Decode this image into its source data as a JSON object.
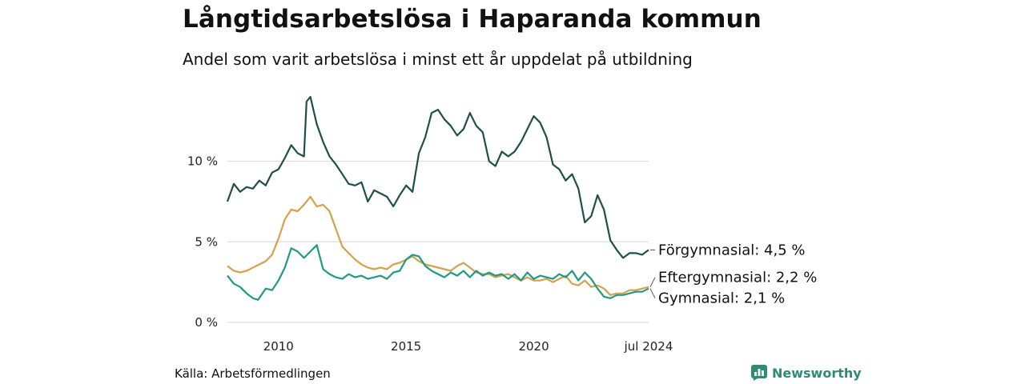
{
  "header": {
    "title": "Långtidsarbetslösa i Haparanda kommun",
    "subtitle": "Andel som varit arbetslösa i minst ett år uppdelat på utbildning"
  },
  "footer": {
    "source": "Källa: Arbetsförmedlingen",
    "brand": "Newsworthy"
  },
  "colors": {
    "forgymnasial": "#1f4f46",
    "eftergymnasial": "#d4a24c",
    "gymnasial": "#1f9a84",
    "grid": "#dddddd",
    "brand": "#2e8b74"
  },
  "chart_data": {
    "type": "line",
    "title": "Långtidsarbetslösa i Haparanda kommun",
    "subtitle": "Andel som varit arbetslösa i minst ett år uppdelat på utbildning",
    "xlabel": "",
    "ylabel": "",
    "xlim": [
      2008.0,
      2024.5
    ],
    "ylim": [
      0,
      14
    ],
    "y_ticks": [
      0,
      5,
      10
    ],
    "y_tick_labels": [
      "0 %",
      "5 %",
      "10 %"
    ],
    "x_ticks": [
      2010,
      2015,
      2020,
      2024.5
    ],
    "x_tick_labels": [
      "2010",
      "2015",
      "2020",
      "jul 2024"
    ],
    "grid": "horizontal",
    "legend": "direct labels at line ends",
    "series": [
      {
        "name": "Förgymnasial",
        "end_label": "Förgymnasial: 4,5 %",
        "color": "#1f4f46",
        "points": [
          [
            2008.0,
            7.5
          ],
          [
            2008.25,
            8.6
          ],
          [
            2008.5,
            8.1
          ],
          [
            2008.75,
            8.4
          ],
          [
            2009.0,
            8.3
          ],
          [
            2009.25,
            8.8
          ],
          [
            2009.5,
            8.5
          ],
          [
            2009.75,
            9.3
          ],
          [
            2010.0,
            9.5
          ],
          [
            2010.25,
            10.2
          ],
          [
            2010.5,
            11.0
          ],
          [
            2010.75,
            10.5
          ],
          [
            2011.0,
            10.3
          ],
          [
            2011.1,
            13.7
          ],
          [
            2011.25,
            14.0
          ],
          [
            2011.5,
            12.3
          ],
          [
            2011.75,
            11.2
          ],
          [
            2012.0,
            10.3
          ],
          [
            2012.25,
            9.8
          ],
          [
            2012.5,
            9.2
          ],
          [
            2012.75,
            8.6
          ],
          [
            2013.0,
            8.5
          ],
          [
            2013.25,
            8.7
          ],
          [
            2013.5,
            7.5
          ],
          [
            2013.75,
            8.2
          ],
          [
            2014.0,
            8.0
          ],
          [
            2014.25,
            7.8
          ],
          [
            2014.5,
            7.2
          ],
          [
            2014.75,
            7.9
          ],
          [
            2015.0,
            8.5
          ],
          [
            2015.25,
            8.1
          ],
          [
            2015.5,
            10.5
          ],
          [
            2015.75,
            11.5
          ],
          [
            2016.0,
            13.0
          ],
          [
            2016.25,
            13.2
          ],
          [
            2016.5,
            12.6
          ],
          [
            2016.75,
            12.2
          ],
          [
            2017.0,
            11.6
          ],
          [
            2017.25,
            12.0
          ],
          [
            2017.5,
            13.0
          ],
          [
            2017.75,
            12.2
          ],
          [
            2018.0,
            11.8
          ],
          [
            2018.25,
            10.0
          ],
          [
            2018.5,
            9.7
          ],
          [
            2018.75,
            10.6
          ],
          [
            2019.0,
            10.3
          ],
          [
            2019.25,
            10.6
          ],
          [
            2019.5,
            11.2
          ],
          [
            2019.75,
            12.0
          ],
          [
            2020.0,
            12.8
          ],
          [
            2020.25,
            12.4
          ],
          [
            2020.5,
            11.5
          ],
          [
            2020.75,
            9.8
          ],
          [
            2021.0,
            9.5
          ],
          [
            2021.25,
            8.8
          ],
          [
            2021.5,
            9.2
          ],
          [
            2021.75,
            8.3
          ],
          [
            2022.0,
            6.2
          ],
          [
            2022.25,
            6.6
          ],
          [
            2022.5,
            7.9
          ],
          [
            2022.75,
            7.0
          ],
          [
            2023.0,
            5.1
          ],
          [
            2023.25,
            4.5
          ],
          [
            2023.5,
            4.0
          ],
          [
            2023.75,
            4.3
          ],
          [
            2024.0,
            4.3
          ],
          [
            2024.25,
            4.2
          ],
          [
            2024.5,
            4.5
          ]
        ]
      },
      {
        "name": "Eftergymnasial",
        "end_label": "Eftergymnasial: 2,2 %",
        "color": "#d4a24c",
        "points": [
          [
            2008.0,
            3.5
          ],
          [
            2008.25,
            3.2
          ],
          [
            2008.5,
            3.1
          ],
          [
            2008.75,
            3.2
          ],
          [
            2009.0,
            3.4
          ],
          [
            2009.25,
            3.6
          ],
          [
            2009.5,
            3.8
          ],
          [
            2009.75,
            4.2
          ],
          [
            2010.0,
            5.2
          ],
          [
            2010.25,
            6.4
          ],
          [
            2010.5,
            7.0
          ],
          [
            2010.75,
            6.9
          ],
          [
            2011.0,
            7.3
          ],
          [
            2011.25,
            7.8
          ],
          [
            2011.5,
            7.2
          ],
          [
            2011.75,
            7.3
          ],
          [
            2012.0,
            6.9
          ],
          [
            2012.25,
            5.8
          ],
          [
            2012.5,
            4.7
          ],
          [
            2012.75,
            4.3
          ],
          [
            2013.0,
            3.9
          ],
          [
            2013.25,
            3.6
          ],
          [
            2013.5,
            3.4
          ],
          [
            2013.75,
            3.3
          ],
          [
            2014.0,
            3.4
          ],
          [
            2014.25,
            3.3
          ],
          [
            2014.5,
            3.6
          ],
          [
            2014.75,
            3.7
          ],
          [
            2015.0,
            3.9
          ],
          [
            2015.25,
            4.1
          ],
          [
            2015.5,
            3.8
          ],
          [
            2015.75,
            3.6
          ],
          [
            2016.0,
            3.5
          ],
          [
            2016.25,
            3.4
          ],
          [
            2016.5,
            3.3
          ],
          [
            2016.75,
            3.2
          ],
          [
            2017.0,
            3.5
          ],
          [
            2017.25,
            3.7
          ],
          [
            2017.5,
            3.4
          ],
          [
            2017.75,
            3.1
          ],
          [
            2018.0,
            3.0
          ],
          [
            2018.25,
            3.0
          ],
          [
            2018.5,
            2.8
          ],
          [
            2018.75,
            2.9
          ],
          [
            2019.0,
            3.0
          ],
          [
            2019.25,
            2.8
          ],
          [
            2019.5,
            2.6
          ],
          [
            2019.75,
            2.8
          ],
          [
            2020.0,
            2.6
          ],
          [
            2020.25,
            2.6
          ],
          [
            2020.5,
            2.7
          ],
          [
            2020.75,
            2.5
          ],
          [
            2021.0,
            2.7
          ],
          [
            2021.25,
            2.9
          ],
          [
            2021.5,
            2.4
          ],
          [
            2021.75,
            2.3
          ],
          [
            2022.0,
            2.6
          ],
          [
            2022.25,
            2.2
          ],
          [
            2022.5,
            2.3
          ],
          [
            2022.75,
            2.1
          ],
          [
            2023.0,
            1.7
          ],
          [
            2023.25,
            1.8
          ],
          [
            2023.5,
            1.8
          ],
          [
            2023.75,
            2.0
          ],
          [
            2024.0,
            2.0
          ],
          [
            2024.25,
            2.1
          ],
          [
            2024.5,
            2.2
          ]
        ]
      },
      {
        "name": "Gymnasial",
        "end_label": "Gymnasial: 2,1 %",
        "color": "#1f9a84",
        "points": [
          [
            2008.0,
            2.9
          ],
          [
            2008.25,
            2.4
          ],
          [
            2008.5,
            2.2
          ],
          [
            2008.75,
            1.8
          ],
          [
            2009.0,
            1.5
          ],
          [
            2009.2,
            1.4
          ],
          [
            2009.5,
            2.1
          ],
          [
            2009.75,
            2.0
          ],
          [
            2010.0,
            2.6
          ],
          [
            2010.25,
            3.4
          ],
          [
            2010.5,
            4.6
          ],
          [
            2010.75,
            4.4
          ],
          [
            2011.0,
            4.0
          ],
          [
            2011.25,
            4.4
          ],
          [
            2011.5,
            4.8
          ],
          [
            2011.75,
            3.3
          ],
          [
            2012.0,
            3.0
          ],
          [
            2012.25,
            2.8
          ],
          [
            2012.5,
            2.7
          ],
          [
            2012.75,
            3.0
          ],
          [
            2013.0,
            2.8
          ],
          [
            2013.25,
            2.9
          ],
          [
            2013.5,
            2.7
          ],
          [
            2013.75,
            2.8
          ],
          [
            2014.0,
            2.9
          ],
          [
            2014.25,
            2.7
          ],
          [
            2014.5,
            3.1
          ],
          [
            2014.75,
            3.2
          ],
          [
            2015.0,
            3.9
          ],
          [
            2015.25,
            4.2
          ],
          [
            2015.5,
            4.1
          ],
          [
            2015.75,
            3.5
          ],
          [
            2016.0,
            3.2
          ],
          [
            2016.25,
            3.0
          ],
          [
            2016.5,
            2.8
          ],
          [
            2016.75,
            3.1
          ],
          [
            2017.0,
            2.9
          ],
          [
            2017.25,
            3.2
          ],
          [
            2017.5,
            2.8
          ],
          [
            2017.75,
            3.2
          ],
          [
            2018.0,
            2.9
          ],
          [
            2018.25,
            3.1
          ],
          [
            2018.5,
            2.9
          ],
          [
            2018.75,
            3.0
          ],
          [
            2019.0,
            2.7
          ],
          [
            2019.25,
            3.0
          ],
          [
            2019.5,
            2.6
          ],
          [
            2019.75,
            3.1
          ],
          [
            2020.0,
            2.7
          ],
          [
            2020.25,
            2.9
          ],
          [
            2020.5,
            2.8
          ],
          [
            2020.75,
            2.7
          ],
          [
            2021.0,
            3.0
          ],
          [
            2021.25,
            2.8
          ],
          [
            2021.5,
            3.2
          ],
          [
            2021.75,
            2.6
          ],
          [
            2022.0,
            3.1
          ],
          [
            2022.25,
            2.7
          ],
          [
            2022.5,
            2.1
          ],
          [
            2022.75,
            1.6
          ],
          [
            2023.0,
            1.5
          ],
          [
            2023.25,
            1.7
          ],
          [
            2023.5,
            1.7
          ],
          [
            2023.75,
            1.8
          ],
          [
            2024.0,
            1.9
          ],
          [
            2024.25,
            1.9
          ],
          [
            2024.5,
            2.1
          ]
        ]
      }
    ]
  }
}
